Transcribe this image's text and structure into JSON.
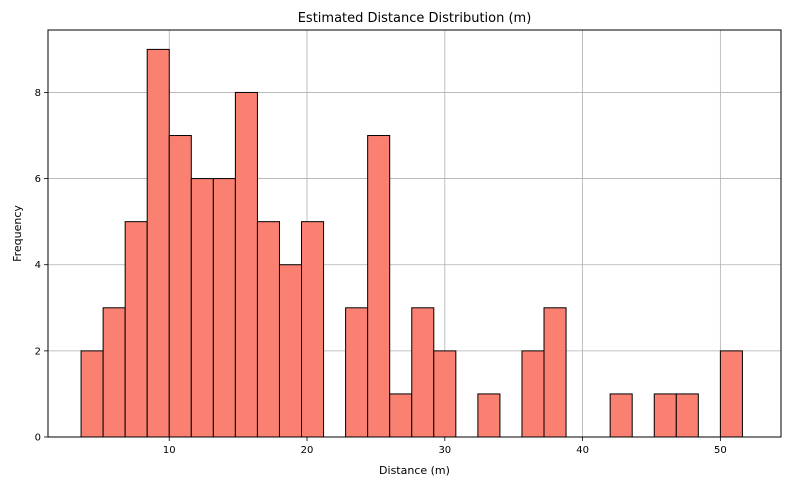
{
  "chart_data": {
    "type": "bar",
    "title": "Estimated Distance Distribution (m)",
    "xlabel": "Distance (m)",
    "ylabel": "Frequency",
    "xlim": [
      1.2,
      54.4
    ],
    "ylim": [
      0,
      9.45
    ],
    "xticks": [
      10,
      20,
      30,
      40,
      50
    ],
    "yticks": [
      0,
      2,
      4,
      6,
      8
    ],
    "grid": true,
    "bar_color": "#FA8072",
    "edge_color": "#000000",
    "bins": [
      {
        "x0": 3.6,
        "x1": 5.2,
        "count": 2
      },
      {
        "x0": 5.2,
        "x1": 6.8,
        "count": 3
      },
      {
        "x0": 6.8,
        "x1": 8.4,
        "count": 5
      },
      {
        "x0": 8.4,
        "x1": 10.0,
        "count": 9
      },
      {
        "x0": 10.0,
        "x1": 11.6,
        "count": 7
      },
      {
        "x0": 11.6,
        "x1": 13.2,
        "count": 6
      },
      {
        "x0": 13.2,
        "x1": 14.8,
        "count": 6
      },
      {
        "x0": 14.8,
        "x1": 16.4,
        "count": 8
      },
      {
        "x0": 16.4,
        "x1": 18.0,
        "count": 5
      },
      {
        "x0": 18.0,
        "x1": 19.6,
        "count": 4
      },
      {
        "x0": 19.6,
        "x1": 21.2,
        "count": 5
      },
      {
        "x0": 21.2,
        "x1": 22.8,
        "count": 0
      },
      {
        "x0": 22.8,
        "x1": 24.4,
        "count": 3
      },
      {
        "x0": 24.4,
        "x1": 26.0,
        "count": 7
      },
      {
        "x0": 26.0,
        "x1": 27.6,
        "count": 1
      },
      {
        "x0": 27.6,
        "x1": 29.2,
        "count": 3
      },
      {
        "x0": 29.2,
        "x1": 30.8,
        "count": 2
      },
      {
        "x0": 30.8,
        "x1": 32.4,
        "count": 0
      },
      {
        "x0": 32.4,
        "x1": 34.0,
        "count": 1
      },
      {
        "x0": 34.0,
        "x1": 35.6,
        "count": 0
      },
      {
        "x0": 35.6,
        "x1": 37.2,
        "count": 2
      },
      {
        "x0": 37.2,
        "x1": 38.8,
        "count": 3
      },
      {
        "x0": 38.8,
        "x1": 40.4,
        "count": 0
      },
      {
        "x0": 40.4,
        "x1": 42.0,
        "count": 0
      },
      {
        "x0": 42.0,
        "x1": 43.6,
        "count": 1
      },
      {
        "x0": 43.6,
        "x1": 45.2,
        "count": 0
      },
      {
        "x0": 45.2,
        "x1": 46.8,
        "count": 1
      },
      {
        "x0": 46.8,
        "x1": 48.4,
        "count": 1
      },
      {
        "x0": 48.4,
        "x1": 50.0,
        "count": 0
      },
      {
        "x0": 50.0,
        "x1": 51.6,
        "count": 2
      }
    ]
  }
}
